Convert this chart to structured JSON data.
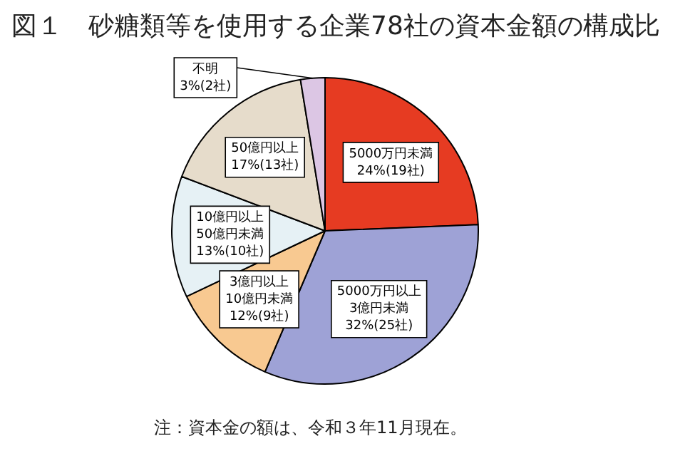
{
  "chart_data": {
    "type": "pie",
    "title": "図１　砂糖類等を使用する企業78社の資本金額の構成比",
    "categories": [
      "5000万円未満",
      "5000万円以上\n3億円未満",
      "3億円以上\n10億円未満",
      "10億円以上\n50億円未満",
      "50億円以上",
      "不明"
    ],
    "values": [
      19,
      25,
      9,
      10,
      13,
      2
    ],
    "value_labels": [
      "24%(19社)",
      "32%(25社)",
      "12%(9社)",
      "13%(10社)",
      "17%(13社)",
      "3%(2社)"
    ],
    "colors": [
      "#e63b22",
      "#9ea2d6",
      "#f8c991",
      "#e6f1f5",
      "#e6dccb",
      "#dcc6e4"
    ],
    "annotations": [
      "注：資本金の額は、令和３年11月現在。"
    ],
    "legend": false
  }
}
